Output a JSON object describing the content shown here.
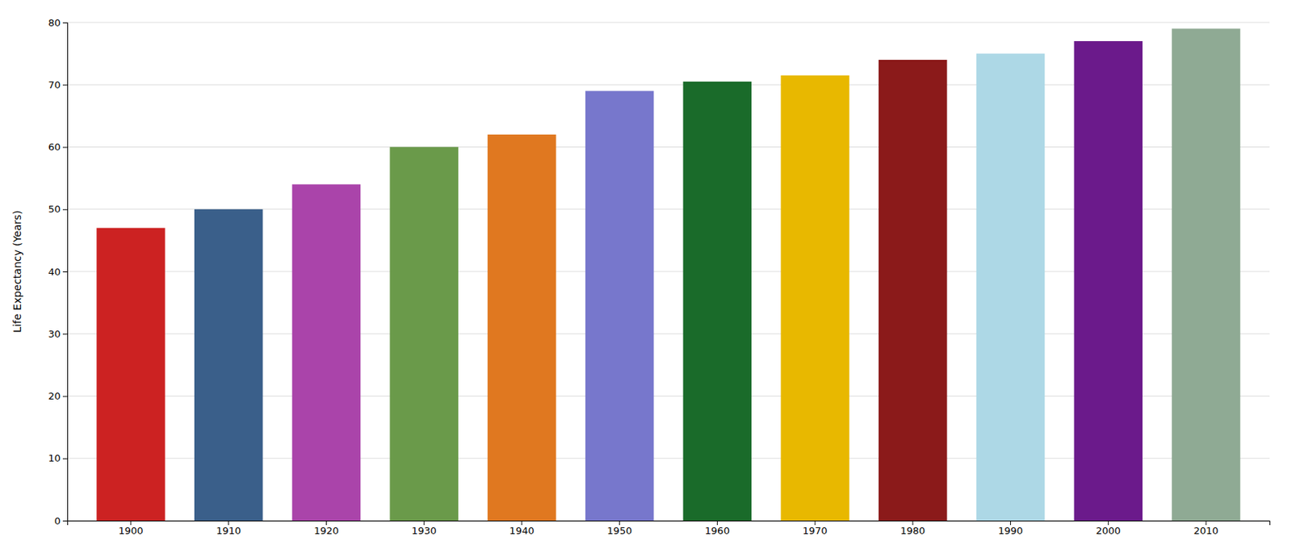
{
  "chart_data": {
    "type": "bar",
    "categories": [
      "1900",
      "1910",
      "1920",
      "1930",
      "1940",
      "1950",
      "1960",
      "1970",
      "1980",
      "1990",
      "2000",
      "2010"
    ],
    "values": [
      47,
      50,
      54,
      60,
      62,
      69,
      70.5,
      71.5,
      74,
      75,
      77,
      79
    ],
    "colors": [
      "#cc2222",
      "#3a5f8a",
      "#aa44aa",
      "#6a9a4a",
      "#e07820",
      "#7777cc",
      "#1a6b2a",
      "#e8b800",
      "#8b1a1a",
      "#add8e6",
      "#6b1a8b",
      "#8faa94"
    ],
    "ylabel": "Life Expectancy (Years)",
    "ylim": [
      0,
      80
    ],
    "yticks": [
      0,
      10,
      20,
      30,
      40,
      50,
      60,
      70,
      80
    ],
    "grid": true
  }
}
